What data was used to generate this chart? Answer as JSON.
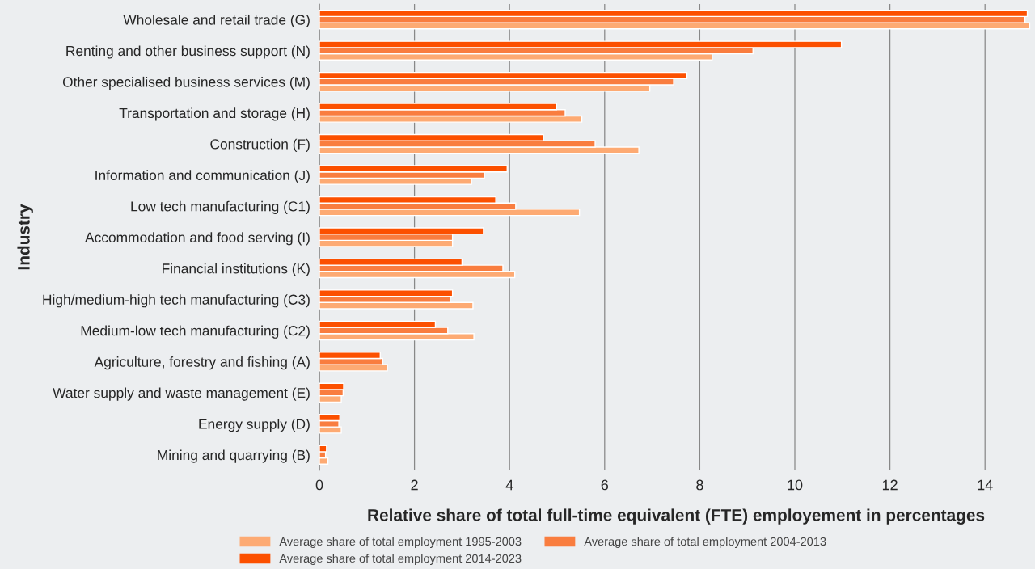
{
  "chart_data": {
    "type": "bar",
    "orientation": "horizontal",
    "xlabel": "Relative share of total full-time equivalent (FTE) employement in percentages",
    "ylabel": "Industry",
    "categories": [
      "Wholesale and retail trade (G)",
      "Renting and other business support (N)",
      "Other specialised business services (M)",
      "Transportation and storage (H)",
      "Construction (F)",
      "Information and communication (J)",
      "Low tech manufacturing (C1)",
      "Accommodation and food serving (I)",
      "Financial institutions (K)",
      "High/medium-high tech manufacturing (C3)",
      "Medium-low tech manufacturing (C2)",
      "Agriculture, forestry and fishing (A)",
      "Water supply and waste management (E)",
      "Energy supply (D)",
      "Mining and quarrying (B)"
    ],
    "series": [
      {
        "name": "Average share of total employment 1995-2003",
        "color": "#fdaa73",
        "values": [
          14.94,
          8.26,
          6.95,
          5.52,
          6.72,
          3.2,
          5.47,
          2.8,
          4.11,
          3.23,
          3.25,
          1.43,
          0.46,
          0.46,
          0.18
        ]
      },
      {
        "name": "Average share of total employment 2004-2013",
        "color": "#f97d3f",
        "values": [
          14.84,
          9.12,
          7.45,
          5.17,
          5.8,
          3.47,
          4.13,
          2.8,
          3.86,
          2.75,
          2.7,
          1.33,
          0.5,
          0.41,
          0.13
        ]
      },
      {
        "name": "Average share of total employment 2014-2023",
        "color": "#fc5000",
        "values": [
          14.89,
          10.98,
          7.73,
          4.99,
          4.71,
          3.95,
          3.71,
          3.45,
          3.0,
          2.8,
          2.44,
          1.28,
          0.51,
          0.43,
          0.15
        ]
      }
    ],
    "xlim": [
      0,
      15
    ],
    "xticks": [
      0,
      2,
      4,
      6,
      8,
      10,
      12,
      14
    ],
    "grid": "x",
    "legend": "bottom"
  }
}
